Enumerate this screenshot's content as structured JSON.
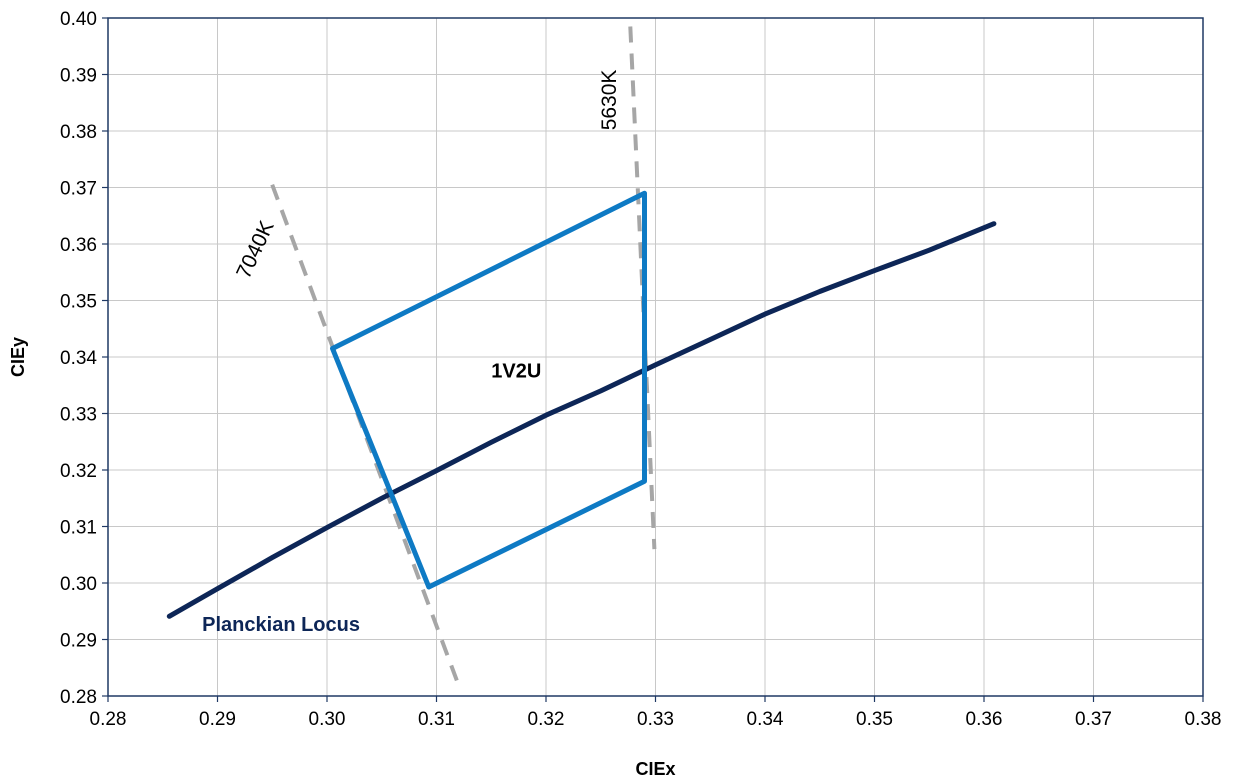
{
  "chart_data": {
    "type": "line",
    "title": "",
    "xlabel": "CIEx",
    "ylabel": "CIEy",
    "xlim": [
      0.28,
      0.38
    ],
    "ylim": [
      0.28,
      0.4
    ],
    "grid": true,
    "x_ticks": [
      "0.28",
      "0.29",
      "0.30",
      "0.31",
      "0.32",
      "0.33",
      "0.34",
      "0.35",
      "0.36",
      "0.37",
      "0.38"
    ],
    "y_ticks": [
      "0.28",
      "0.29",
      "0.30",
      "0.31",
      "0.32",
      "0.33",
      "0.34",
      "0.35",
      "0.36",
      "0.37",
      "0.38",
      "0.39",
      "0.40"
    ],
    "series": [
      {
        "name": "Planckian Locus",
        "color": "#0d2657",
        "style": "solid",
        "points": [
          [
            0.2856,
            0.2941
          ],
          [
            0.29,
            0.299
          ],
          [
            0.295,
            0.3045
          ],
          [
            0.3,
            0.3098
          ],
          [
            0.305,
            0.315
          ],
          [
            0.31,
            0.3199
          ],
          [
            0.315,
            0.3249
          ],
          [
            0.32,
            0.3297
          ],
          [
            0.325,
            0.334
          ],
          [
            0.33,
            0.3386
          ],
          [
            0.335,
            0.3431
          ],
          [
            0.34,
            0.3476
          ],
          [
            0.345,
            0.3516
          ],
          [
            0.35,
            0.3553
          ],
          [
            0.355,
            0.3589
          ],
          [
            0.3609,
            0.3636
          ]
        ]
      },
      {
        "name": "1V2U",
        "color": "#0e7ac4",
        "style": "solid",
        "points": [
          [
            0.3005,
            0.3415
          ],
          [
            0.329,
            0.369
          ],
          [
            0.329,
            0.318
          ],
          [
            0.3093,
            0.2993
          ],
          [
            0.3005,
            0.3415
          ]
        ]
      },
      {
        "name": "7040K",
        "color": "#a6a6a6",
        "style": "dashed",
        "points": [
          [
            0.295,
            0.3705
          ],
          [
            0.312,
            0.282
          ]
        ]
      },
      {
        "name": "5630K",
        "color": "#a6a6a6",
        "style": "dashed",
        "points": [
          [
            0.3277,
            0.3985
          ],
          [
            0.3299,
            0.306
          ]
        ]
      }
    ],
    "annotations": [
      {
        "text": "Planckian Locus",
        "x": 0.2886,
        "y": 0.2915,
        "color": "#0d2657",
        "weight": "bold"
      },
      {
        "text": "1V2U",
        "x": 0.315,
        "y": 0.3364,
        "color": "#000000",
        "weight": "bold"
      },
      {
        "text": "7040K",
        "x": 0.294,
        "y": 0.3585,
        "color": "#000000",
        "weight": "normal",
        "rotation": -65
      },
      {
        "text": "5630K",
        "x": 0.3264,
        "y": 0.3855,
        "color": "#000000",
        "weight": "normal",
        "rotation": -90
      }
    ]
  }
}
